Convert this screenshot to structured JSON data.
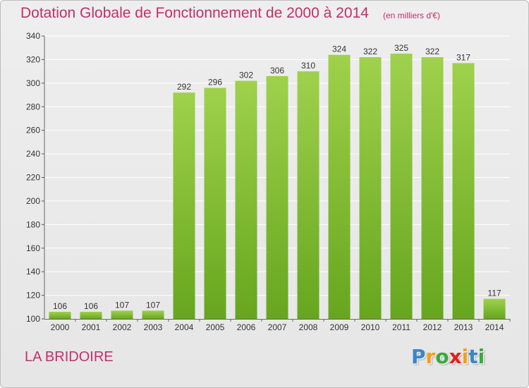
{
  "title": "Dotation Globale de Fonctionnement de 2000 à 2014",
  "subtitle": "(en milliers d'€)",
  "commune": "LA BRIDOIRE",
  "logo": {
    "letters": [
      "P",
      "r",
      "o",
      "x",
      "i",
      "t",
      "i"
    ],
    "colors": [
      "#3a86c8",
      "#f29f1a",
      "#3aa843",
      "#e2231a",
      "#f29f1a",
      "#3a86c8",
      "#3aa843"
    ]
  },
  "colors": {
    "title": "#c0306a",
    "bar_top": "#9fd14c",
    "bar_bottom": "#66a61e",
    "grid": "#ffffff",
    "axis_text": "#333333"
  },
  "chart_data": {
    "type": "bar",
    "categories": [
      "2000",
      "2001",
      "2002",
      "2003",
      "2004",
      "2005",
      "2006",
      "2007",
      "2008",
      "2009",
      "2010",
      "2011",
      "2012",
      "2013",
      "2014"
    ],
    "values": [
      106,
      106,
      107,
      107,
      292,
      296,
      302,
      306,
      310,
      324,
      322,
      325,
      322,
      317,
      117
    ],
    "title": "Dotation Globale de Fonctionnement de 2000 à 2014",
    "ylim": [
      100,
      340
    ],
    "yticks": [
      100,
      120,
      140,
      160,
      180,
      200,
      220,
      240,
      260,
      280,
      300,
      320,
      340
    ],
    "grid": true,
    "data_labels": true
  }
}
